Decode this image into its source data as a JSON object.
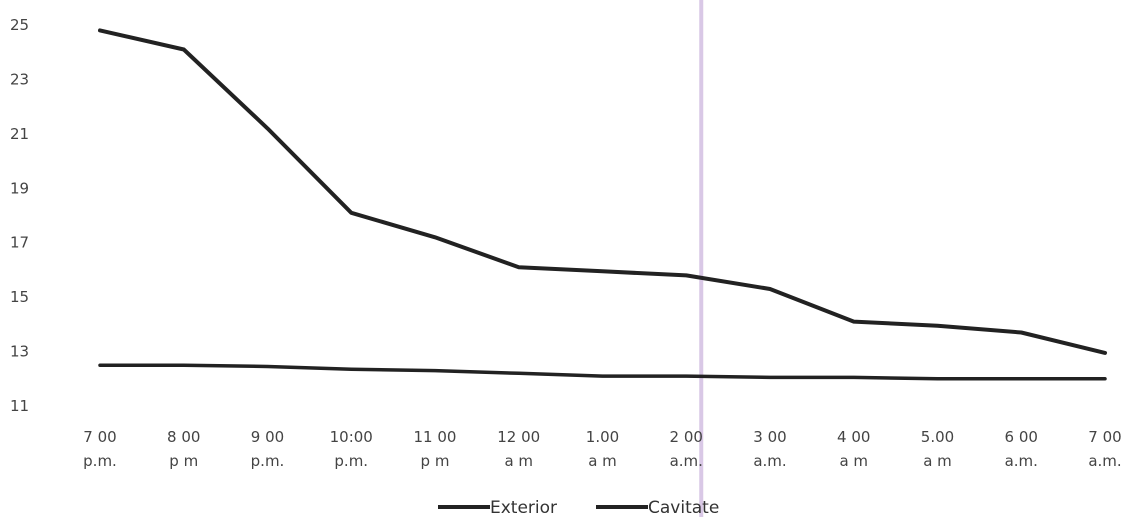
{
  "chart_data": {
    "type": "line",
    "title": "",
    "xlabel": "",
    "ylabel": "",
    "ylim": [
      11,
      25
    ],
    "yticks": [
      11,
      13,
      15,
      17,
      19,
      21,
      23,
      25
    ],
    "grid": false,
    "legend_position": "bottom",
    "categories": [
      [
        "7 00",
        "p.m."
      ],
      [
        "8 00",
        "p m"
      ],
      [
        "9 00",
        "p.m."
      ],
      [
        "10:00",
        "p.m."
      ],
      [
        "11 00",
        "p m"
      ],
      [
        "12 00",
        "a m"
      ],
      [
        "1.00",
        "a m"
      ],
      [
        "2 00",
        "a.m."
      ],
      [
        "3 00",
        "a.m."
      ],
      [
        "4 00",
        "a m"
      ],
      [
        "5.00",
        "a m"
      ],
      [
        "6 00",
        "a.m."
      ],
      [
        "7 00",
        "a.m."
      ]
    ],
    "series": [
      {
        "name": "Exterior",
        "color": "#222222",
        "values": [
          24.8,
          24.1,
          21.2,
          18.1,
          17.2,
          16.1,
          15.95,
          15.8,
          15.3,
          14.1,
          13.95,
          13.7,
          12.95
        ]
      },
      {
        "name": "Cavitate",
        "color": "#222222",
        "values": [
          12.5,
          12.5,
          12.45,
          12.35,
          12.3,
          12.2,
          12.1,
          12.1,
          12.05,
          12.05,
          12.0,
          12.0,
          12.0
        ]
      }
    ],
    "marker_line": {
      "after_category_index": 7,
      "color": "#d9c8e6"
    }
  }
}
